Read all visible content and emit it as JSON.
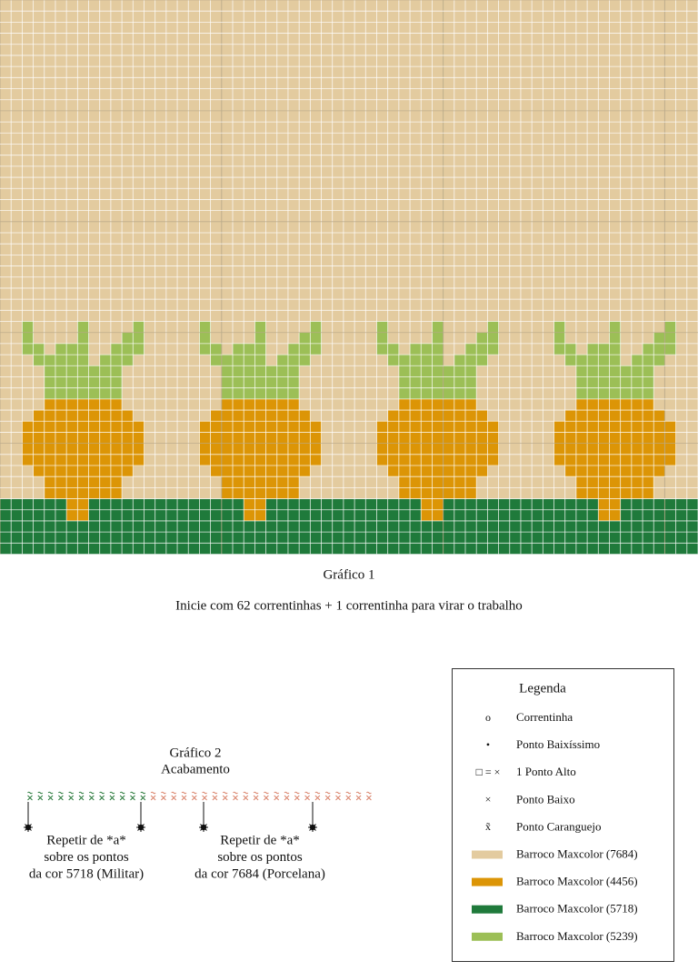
{
  "chart1": {
    "title": "Gráfico 1",
    "note": "Inicie com 62 correntinhas + 1 correntinha para virar o trabalho"
  },
  "chart2": {
    "title": "Gráfico 2",
    "subtitle": "Acabamento",
    "repeats": [
      [
        "Repetir de *a*",
        "sobre os pontos",
        "da cor 5718 (Militar)"
      ],
      [
        "Repetir de *a*",
        "sobre os pontos",
        "da cor 7684 (Porcelana)"
      ]
    ]
  },
  "legend": {
    "title": "Legenda",
    "items": [
      {
        "symbol": "o",
        "label": "Correntinha"
      },
      {
        "symbol": "•",
        "label": "Ponto Baixíssimo"
      },
      {
        "symbol": "□ = ×",
        "label": "1 Ponto Alto"
      },
      {
        "symbol": "×",
        "label": "Ponto Baixo"
      },
      {
        "symbol": "x̃",
        "label": "Ponto Caranguejo"
      },
      {
        "color": "#e3cb9f",
        "label": "Barroco Maxcolor (7684)"
      },
      {
        "color": "#dc9506",
        "label": "Barroco Maxcolor (4456)"
      },
      {
        "color": "#1f7a3b",
        "label": "Barroco Maxcolor (5718)"
      },
      {
        "color": "#9cbf56",
        "label": "Barroco Maxcolor (5239)"
      }
    ]
  }
}
